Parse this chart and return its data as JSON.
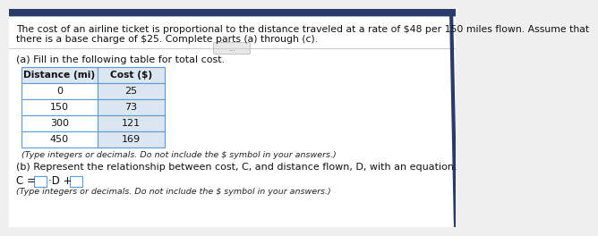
{
  "title_line1": "The cost of an airline ticket is proportional to the distance traveled at a rate of $48 per 150 miles flown. Assume that",
  "title_line2": "there is a base charge of $25. Complete parts (a) through (c).",
  "section_a_label": "(a) Fill in the following table for total cost.",
  "table_headers": [
    "Distance (mi)",
    "Cost ($)"
  ],
  "table_data": [
    [
      "0",
      "25"
    ],
    [
      "150",
      "73"
    ],
    [
      "300",
      "121"
    ],
    [
      "450",
      "169"
    ]
  ],
  "table_note": "(Type integers or decimals. Do not include the $ symbol in your answers.)",
  "section_b_label": "(b) Represent the relationship between cost, C, and distance flown, D, with an equation.",
  "equation_note": "(Type integers or decimals. Do not include the $ symbol in your answers.)",
  "top_bar_color": "#2a3a6b",
  "bg_color": "#f0f0f0",
  "panel_color": "#ffffff",
  "header_bg": "#dce6f1",
  "cost_cell_bg": "#dce6f1",
  "dist_cell_bg": "#ffffff",
  "border_color": "#5b9bd5",
  "text_color": "#111111",
  "note_color": "#222222",
  "title_fontsize": 7.8,
  "body_fontsize": 8.0,
  "small_fontsize": 6.8,
  "eq_fontsize": 8.5
}
